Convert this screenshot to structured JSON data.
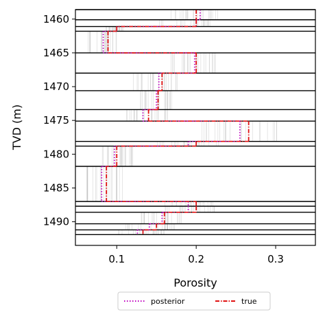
{
  "chart_data": {
    "type": "line",
    "xlabel": "Porosity",
    "ylabel": "TVD (m)",
    "xlim": [
      0.048,
      0.35
    ],
    "ylim": [
      1458.6,
      1493.5
    ],
    "y_inverted": true,
    "xticks": [
      0.1,
      0.2,
      0.3
    ],
    "xtick_labels": [
      "0.1",
      "0.2",
      "0.3"
    ],
    "yticks": [
      1460,
      1465,
      1470,
      1475,
      1480,
      1485,
      1490
    ],
    "ytick_labels": [
      "1460",
      "1465",
      "1470",
      "1475",
      "1480",
      "1485",
      "1490"
    ],
    "layer_boundaries": [
      1458.6,
      1460.1,
      1461.1,
      1461.8,
      1465.0,
      1468.0,
      1470.6,
      1473.4,
      1475.1,
      1478.1,
      1478.8,
      1481.8,
      1487.0,
      1487.7,
      1488.6,
      1490.3,
      1491.2,
      1491.9
    ],
    "legend": {
      "position": "bottom-center",
      "entries": [
        "posterior",
        "true"
      ]
    },
    "series": [
      {
        "name": "posterior",
        "color": "#bf00bf",
        "style": "dotted",
        "layers": [
          {
            "top": 1458.6,
            "bottom": 1460.1,
            "value": 0.205
          },
          {
            "top": 1460.1,
            "bottom": 1461.1,
            "value": 0.2
          },
          {
            "top": 1461.1,
            "bottom": 1461.8,
            "value": 0.1
          },
          {
            "top": 1461.8,
            "bottom": 1465.0,
            "value": 0.083
          },
          {
            "top": 1465.0,
            "bottom": 1468.0,
            "value": 0.198
          },
          {
            "top": 1468.0,
            "bottom": 1470.6,
            "value": 0.153
          },
          {
            "top": 1470.6,
            "bottom": 1473.4,
            "value": 0.15
          },
          {
            "top": 1473.4,
            "bottom": 1475.1,
            "value": 0.133
          },
          {
            "top": 1475.1,
            "bottom": 1478.1,
            "value": 0.255
          },
          {
            "top": 1478.1,
            "bottom": 1478.8,
            "value": 0.19
          },
          {
            "top": 1478.8,
            "bottom": 1481.8,
            "value": 0.097
          },
          {
            "top": 1481.8,
            "bottom": 1487.0,
            "value": 0.081
          },
          {
            "top": 1487.0,
            "bottom": 1487.7,
            "value": 0.19
          },
          {
            "top": 1487.7,
            "bottom": 1488.6,
            "value": 0.19
          },
          {
            "top": 1488.6,
            "bottom": 1490.3,
            "value": 0.157
          },
          {
            "top": 1490.3,
            "bottom": 1491.2,
            "value": 0.141
          },
          {
            "top": 1491.2,
            "bottom": 1491.9,
            "value": 0.126
          }
        ]
      },
      {
        "name": "true",
        "color": "#e01010",
        "style": "dashdot",
        "layers": [
          {
            "top": 1458.6,
            "bottom": 1460.1,
            "value": 0.2
          },
          {
            "top": 1460.1,
            "bottom": 1461.1,
            "value": 0.2
          },
          {
            "top": 1461.1,
            "bottom": 1461.8,
            "value": 0.1
          },
          {
            "top": 1461.8,
            "bottom": 1465.0,
            "value": 0.089
          },
          {
            "top": 1465.0,
            "bottom": 1468.0,
            "value": 0.2
          },
          {
            "top": 1468.0,
            "bottom": 1470.6,
            "value": 0.157
          },
          {
            "top": 1470.6,
            "bottom": 1473.4,
            "value": 0.152
          },
          {
            "top": 1473.4,
            "bottom": 1475.1,
            "value": 0.14
          },
          {
            "top": 1475.1,
            "bottom": 1478.1,
            "value": 0.266
          },
          {
            "top": 1478.1,
            "bottom": 1478.8,
            "value": 0.2
          },
          {
            "top": 1478.8,
            "bottom": 1481.8,
            "value": 0.1
          },
          {
            "top": 1481.8,
            "bottom": 1487.0,
            "value": 0.087
          },
          {
            "top": 1487.0,
            "bottom": 1487.7,
            "value": 0.2
          },
          {
            "top": 1487.7,
            "bottom": 1488.6,
            "value": 0.2
          },
          {
            "top": 1488.6,
            "bottom": 1490.3,
            "value": 0.16
          },
          {
            "top": 1490.3,
            "bottom": 1491.2,
            "value": 0.15
          },
          {
            "top": 1491.2,
            "bottom": 1491.9,
            "value": 0.133
          }
        ]
      }
    ],
    "samples": {
      "name": "posterior samples",
      "color": "#b4b4b4",
      "note": "per-layer spread of posterior realizations",
      "layers": [
        {
          "min": 0.165,
          "max": 0.23
        },
        {
          "min": 0.15,
          "max": 0.225
        },
        {
          "min": 0.085,
          "max": 0.11
        },
        {
          "min": 0.062,
          "max": 0.1
        },
        {
          "min": 0.165,
          "max": 0.225
        },
        {
          "min": 0.12,
          "max": 0.18
        },
        {
          "min": 0.125,
          "max": 0.175
        },
        {
          "min": 0.11,
          "max": 0.165
        },
        {
          "min": 0.2,
          "max": 0.305
        },
        {
          "min": 0.15,
          "max": 0.23
        },
        {
          "min": 0.08,
          "max": 0.12
        },
        {
          "min": 0.062,
          "max": 0.11
        },
        {
          "min": 0.16,
          "max": 0.225
        },
        {
          "min": 0.16,
          "max": 0.225
        },
        {
          "min": 0.125,
          "max": 0.185
        },
        {
          "min": 0.11,
          "max": 0.175
        },
        {
          "min": 0.1,
          "max": 0.16
        }
      ]
    }
  }
}
